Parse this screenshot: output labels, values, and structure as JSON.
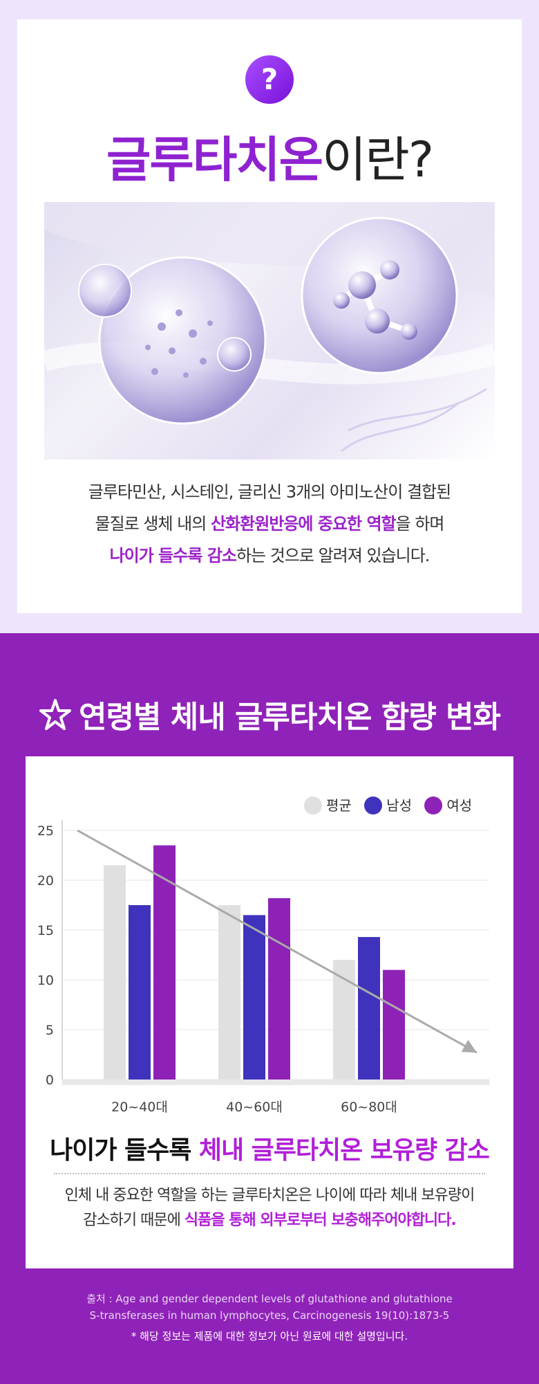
{
  "header": {
    "icon": "question-mark-icon",
    "icon_glyph": "?",
    "title_accent": "글루타치온",
    "title_rest": "이란?"
  },
  "intro": {
    "line1": "글루타민산, 시스테인, 글리신 3개의 아미노산이 결합된",
    "line2_pre": "물질로 생체 내의 ",
    "line2_hl": "산화환원반응에 중요한 역할",
    "line2_post": "을 하며",
    "line3_hl": "나이가 들수록 감소",
    "line3_post": "하는 것으로 알려져 있습니다."
  },
  "section": {
    "title": "연령별 체내 글루타치온 함량 변화",
    "icon": "star-icon"
  },
  "legend": {
    "avg": "평균",
    "male": "남성",
    "female": "여성"
  },
  "colors": {
    "avg": "#e0e0e0",
    "male": "#3f33bd",
    "female": "#8e22b6",
    "trend": "#aaaaaa",
    "accent": "#b21fd8",
    "background": "#8f22b8"
  },
  "chart_data": {
    "type": "bar",
    "categories": [
      "20~40대",
      "40~60대",
      "60~80대"
    ],
    "series": [
      {
        "name": "평균",
        "values": [
          21.5,
          17.5,
          12.0
        ]
      },
      {
        "name": "남성",
        "values": [
          17.5,
          16.5,
          14.3
        ]
      },
      {
        "name": "여성",
        "values": [
          23.5,
          18.2,
          11.0
        ]
      }
    ],
    "ylim": [
      0,
      25
    ],
    "yticks": [
      0,
      5,
      10,
      15,
      20,
      25
    ],
    "grid": true,
    "legend_position": "top-right",
    "trend_arrow": true
  },
  "conclusion": {
    "pre": "나이가 들수록 ",
    "hl": "체내 글루타치온 보유량 감소"
  },
  "note": {
    "line1": "인체 내 중요한 역할을 하는 글루타치온은 나이에 따라 체내 보유량이",
    "line2_pre": "감소하기 때문에 ",
    "line2_hl": "식품을 통해 외부로부터 보충해주어야합니다."
  },
  "source": {
    "line1": "출처 : Age and gender dependent levels of glutathione and glutathione",
    "line2": "S-transferases in human lymphocytes, Carcinogenesis 19(10):1873-5"
  },
  "disclaimer": "* 해당 정보는 제품에 대한 정보가 아닌 원료에 대한 설명입니다."
}
